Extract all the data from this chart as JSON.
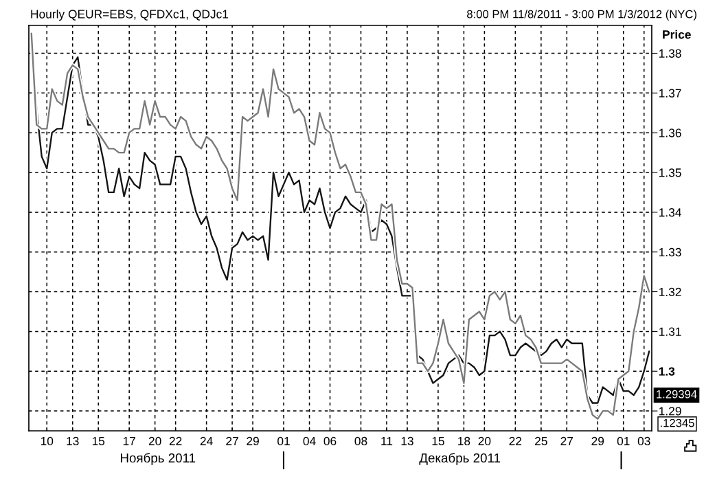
{
  "chart_data": {
    "type": "line",
    "title": "Hourly QEUR=EBS, QFDXc1, QDJc1",
    "subtitle": "8:00 PM 11/8/2011 - 3:00 PM 1/3/2012 (NYC)",
    "ylabel": "Price",
    "categories": [
      null,
      null,
      null,
      "10",
      null,
      null,
      null,
      null,
      "13",
      null,
      null,
      null,
      null,
      "15",
      null,
      null,
      null,
      null,
      null,
      "17",
      null,
      null,
      null,
      null,
      "20",
      null,
      null,
      null,
      "22",
      null,
      null,
      null,
      null,
      null,
      "24",
      null,
      null,
      null,
      null,
      "27",
      null,
      null,
      null,
      "29",
      null,
      null,
      null,
      null,
      null,
      "01",
      null,
      null,
      null,
      null,
      "04",
      null,
      null,
      null,
      "06",
      null,
      null,
      null,
      null,
      null,
      "08",
      null,
      null,
      null,
      null,
      "11",
      null,
      null,
      null,
      "13",
      null,
      null,
      null,
      null,
      null,
      "15",
      null,
      null,
      null,
      null,
      "18",
      null,
      null,
      null,
      "20",
      null,
      null,
      null,
      null,
      null,
      "22",
      null,
      null,
      null,
      null,
      "25",
      null,
      null,
      null,
      null,
      "27",
      null,
      null,
      null,
      null,
      null,
      "29",
      null,
      null,
      null,
      null,
      "01",
      null,
      null,
      null,
      "03",
      null
    ],
    "series": [
      {
        "color": "#141414",
        "values": [
          1.383,
          1.366,
          1.354,
          1.351,
          1.36,
          1.361,
          1.361,
          1.369,
          1.377,
          1.379,
          1.37,
          1.362,
          1.362,
          1.359,
          1.353,
          1.345,
          1.345,
          1.351,
          1.344,
          1.349,
          1.347,
          1.346,
          1.355,
          1.353,
          1.352,
          1.347,
          1.347,
          1.347,
          1.354,
          1.354,
          1.351,
          1.345,
          1.34,
          1.337,
          1.339,
          1.334,
          1.331,
          1.326,
          1.323,
          1.331,
          1.332,
          1.335,
          1.333,
          1.334,
          1.333,
          1.334,
          1.328,
          1.35,
          1.344,
          1.347,
          1.35,
          1.347,
          1.348,
          1.34,
          1.343,
          1.342,
          1.346,
          1.34,
          1.336,
          1.34,
          1.341,
          1.344,
          1.342,
          1.341,
          1.34,
          1.343,
          1.335,
          1.336,
          1.338,
          1.337,
          1.334,
          1.326,
          1.319,
          1.319,
          1.319,
          1.304,
          1.303,
          1.3,
          1.297,
          1.298,
          1.299,
          1.302,
          1.303,
          1.304,
          1.302,
          1.302,
          1.301,
          1.299,
          1.3,
          1.309,
          1.309,
          1.31,
          1.308,
          1.304,
          1.304,
          1.306,
          1.307,
          1.306,
          1.305,
          1.304,
          1.305,
          1.307,
          1.308,
          1.306,
          1.308,
          1.307,
          1.307,
          1.307,
          1.294,
          1.292,
          1.292,
          1.296,
          1.295,
          1.294,
          1.298,
          1.295,
          1.295,
          1.294,
          1.296,
          1.3,
          1.305
        ]
      },
      {
        "color": "#7a7a7a",
        "values": [
          1.385,
          1.362,
          1.361,
          1.361,
          1.371,
          1.368,
          1.367,
          1.375,
          1.377,
          1.376,
          1.369,
          1.364,
          1.362,
          1.36,
          1.358,
          1.356,
          1.356,
          1.355,
          1.355,
          1.36,
          1.361,
          1.361,
          1.368,
          1.362,
          1.368,
          1.364,
          1.364,
          1.362,
          1.361,
          1.364,
          1.363,
          1.359,
          1.357,
          1.356,
          1.359,
          1.358,
          1.356,
          1.353,
          1.351,
          1.346,
          1.343,
          1.364,
          1.363,
          1.364,
          1.365,
          1.371,
          1.364,
          1.376,
          1.371,
          1.37,
          1.369,
          1.365,
          1.366,
          1.364,
          1.358,
          1.357,
          1.365,
          1.361,
          1.36,
          1.355,
          1.351,
          1.352,
          1.349,
          1.345,
          1.345,
          1.342,
          1.333,
          1.333,
          1.342,
          1.341,
          1.342,
          1.328,
          1.322,
          1.322,
          1.321,
          1.302,
          1.302,
          1.3,
          1.302,
          1.307,
          1.313,
          1.307,
          1.305,
          1.303,
          1.297,
          1.313,
          1.314,
          1.315,
          1.313,
          1.319,
          1.32,
          1.318,
          1.32,
          1.313,
          1.312,
          1.314,
          1.309,
          1.308,
          1.306,
          1.302,
          1.302,
          1.302,
          1.302,
          1.302,
          1.303,
          1.302,
          1.301,
          1.3,
          1.293,
          1.289,
          1.288,
          1.29,
          1.29,
          1.289,
          1.298,
          1.299,
          1.3,
          1.31,
          1.316,
          1.324,
          1.32
        ]
      }
    ],
    "ylim": [
      1.285,
      1.387
    ],
    "yticks": [
      1.29,
      1.3,
      1.31,
      1.32,
      1.33,
      1.34,
      1.35,
      1.36,
      1.37,
      1.38
    ],
    "grid": true,
    "annotations": [
      "Ноябрь 2011",
      "Декабрь 2011",
      "1.29394",
      ".12345"
    ]
  }
}
